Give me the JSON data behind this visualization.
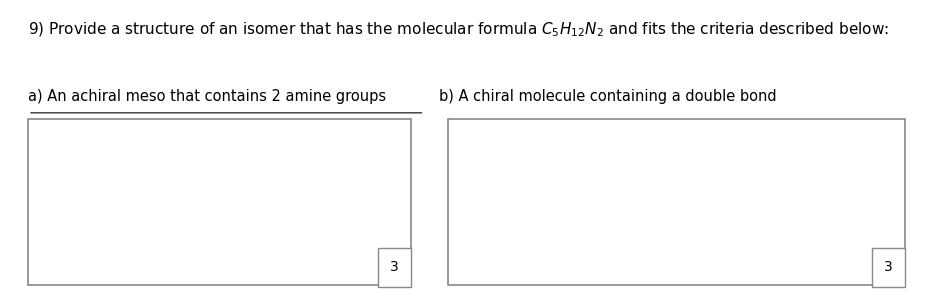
{
  "label_a": "a) An achiral meso that contains 2 amine groups",
  "label_b": "b) A chiral molecule containing a double bond",
  "box_score": "3",
  "bg_color": "#ffffff",
  "text_color": "#000000",
  "box_line_color": "#888888",
  "font_size_title": 11,
  "font_size_label": 10.5,
  "font_size_score": 10,
  "title_prefix": "9) Provide a structure of an isomer that has the molecular formula C",
  "title_suffix": " and fits the criteria described below:"
}
